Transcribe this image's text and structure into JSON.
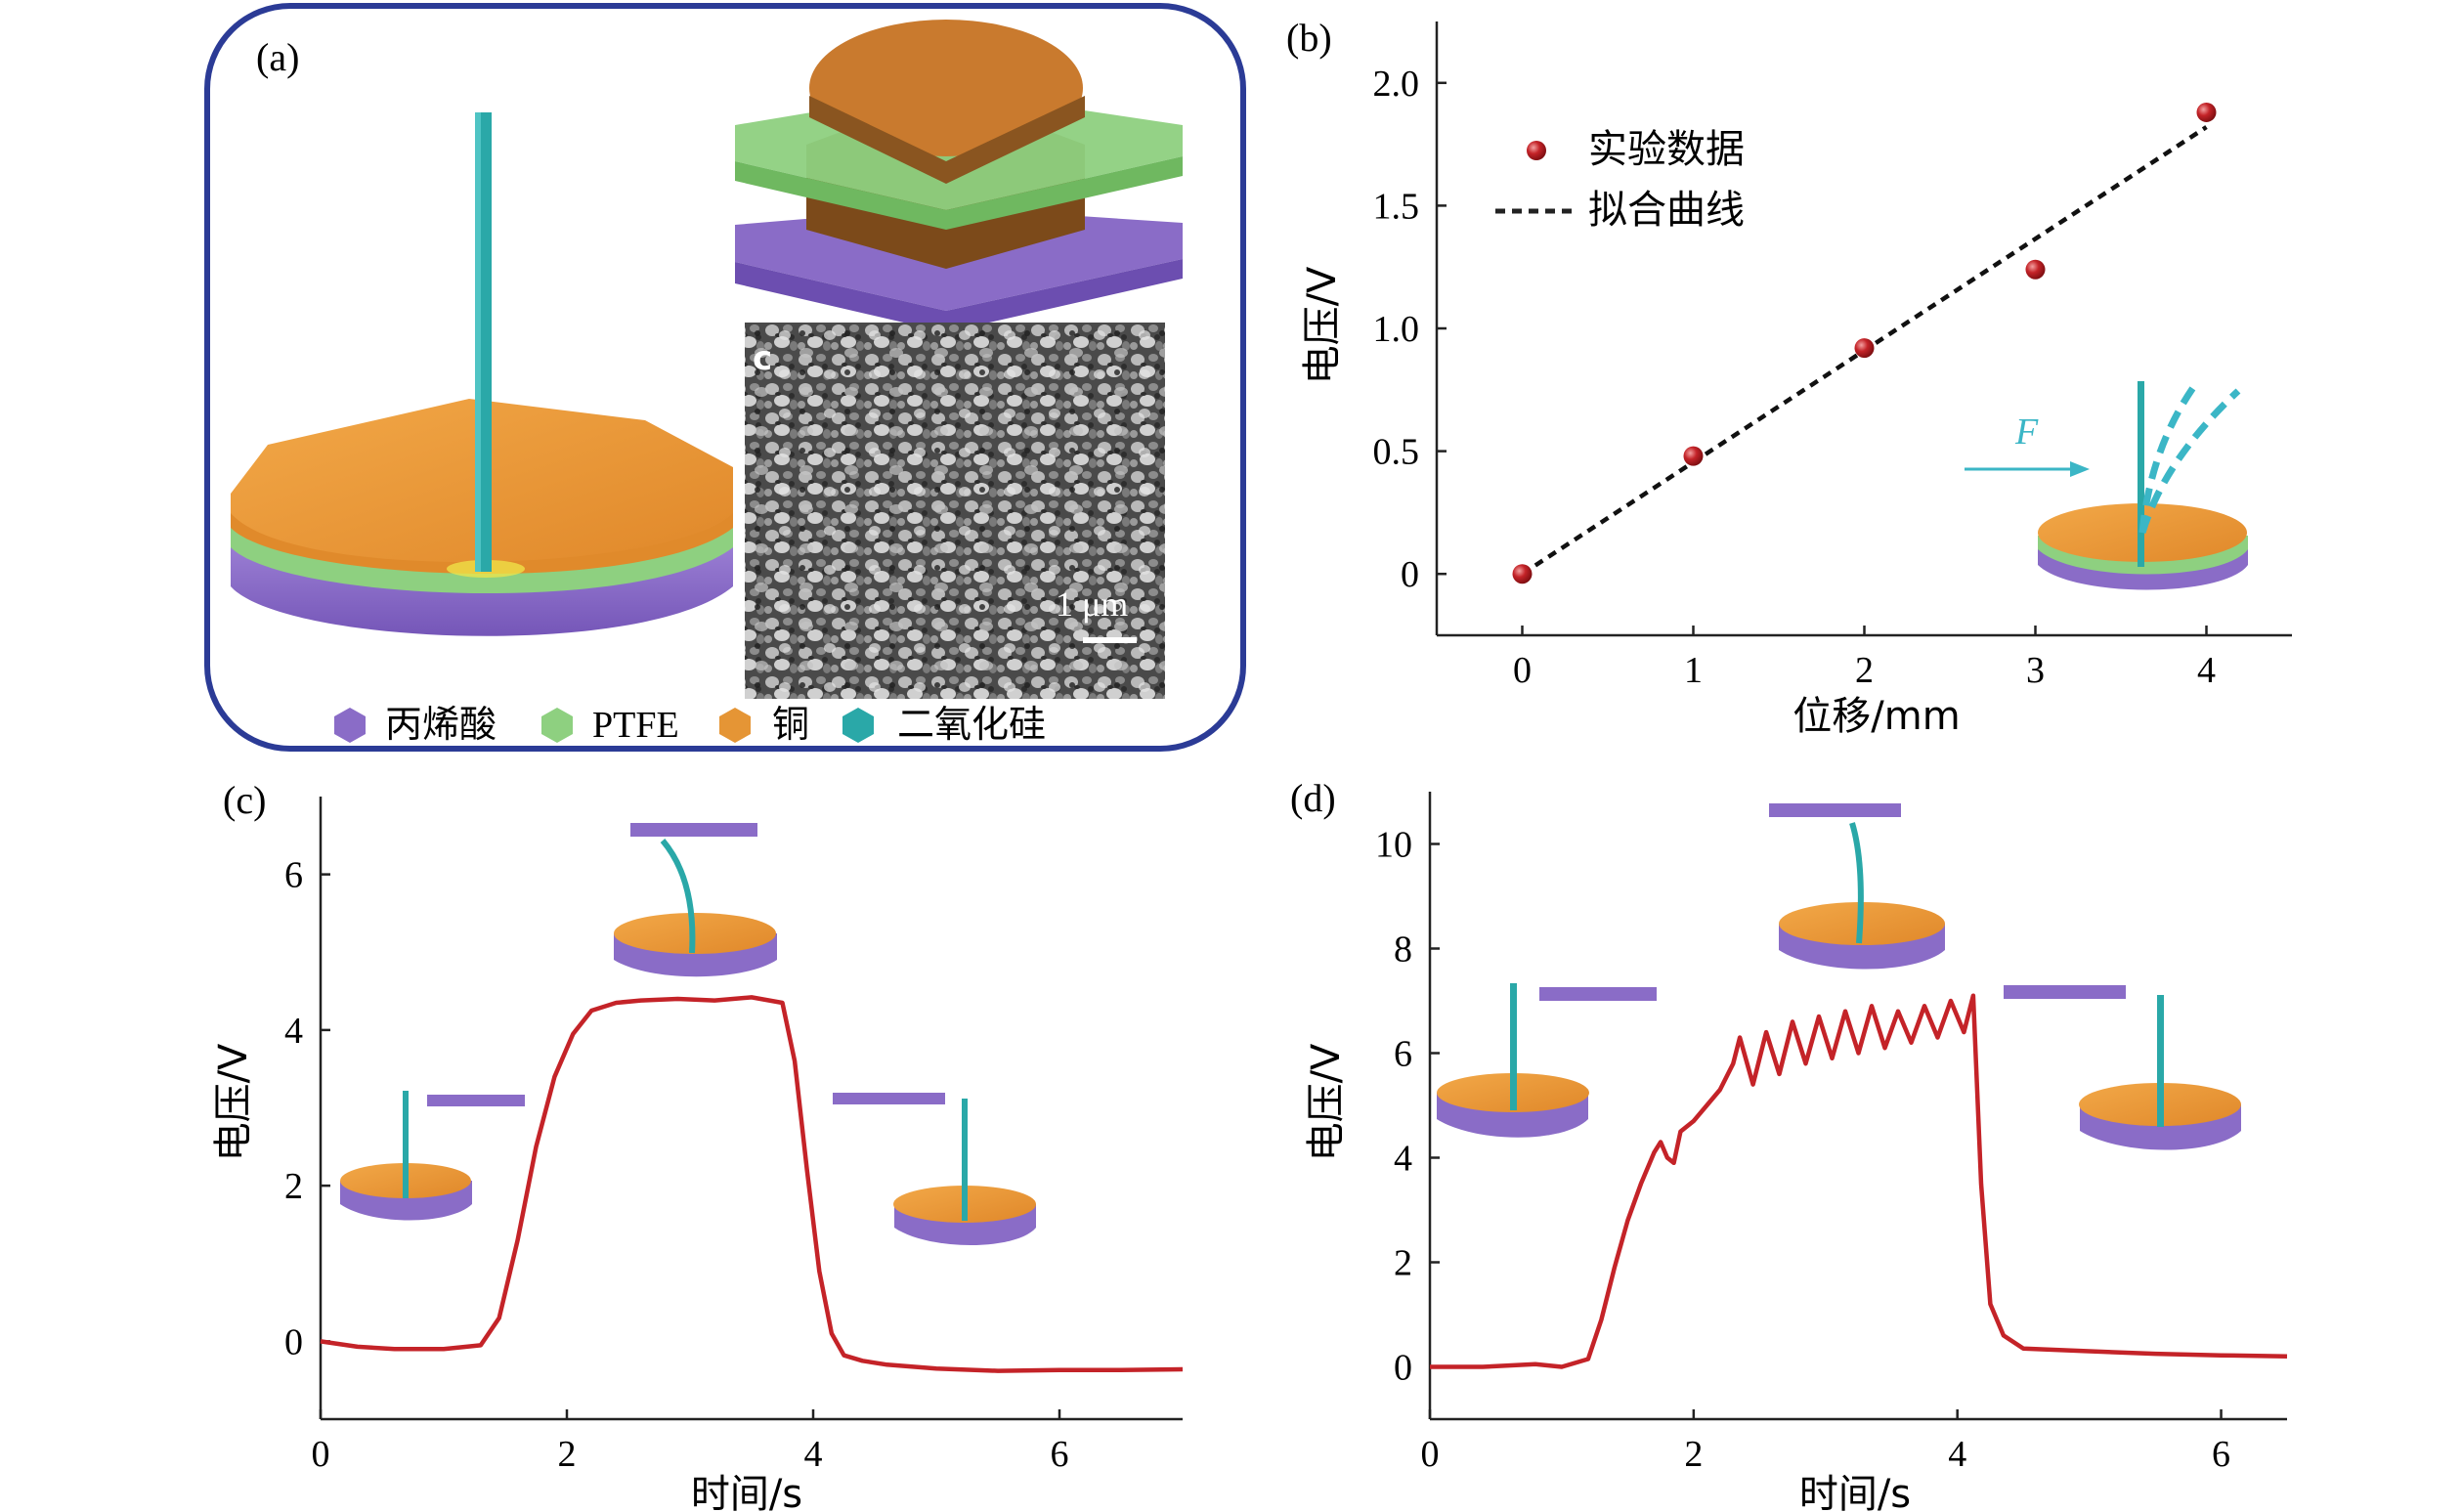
{
  "panel_labels": {
    "a": "(a)",
    "b": "(b)",
    "c": "(c)",
    "d": "(d)"
  },
  "colors": {
    "frame": "#2b3b96",
    "copper": "#e59535",
    "ptfe": "#8ed080",
    "acrylic": "#8a6cc7",
    "silica": "#2aa8a8",
    "data_red": "#c42328",
    "curve_red": "#c42328",
    "force_arrow": "#3bb6c6"
  },
  "panel_a": {
    "sem_label": "c",
    "scale_bar": "1 μm",
    "legend": [
      {
        "label": "丙烯酸",
        "color": "#8a6cc7"
      },
      {
        "label": "PTFE",
        "color": "#8ed080"
      },
      {
        "label": "铜",
        "color": "#e59535"
      },
      {
        "label": "二氧化硅",
        "color": "#2aa8a8"
      }
    ]
  },
  "chart_data": [
    {
      "id": "b",
      "type": "scatter",
      "xlabel": "位移/mm",
      "ylabel": "电压/V",
      "xlim": [
        -0.5,
        4.5
      ],
      "ylim": [
        -0.25,
        2.25
      ],
      "xticks": [
        0,
        1,
        2,
        3,
        4
      ],
      "yticks": [
        0,
        0.5,
        1.0,
        1.5,
        2.0
      ],
      "ytick_labels": [
        "0",
        "0.5",
        "1.0",
        "1.5",
        "2.0"
      ],
      "series": [
        {
          "name": "实验数据",
          "kind": "points",
          "x": [
            0,
            1,
            2,
            3,
            4
          ],
          "y": [
            0.0,
            0.48,
            0.92,
            1.24,
            1.88
          ]
        },
        {
          "name": "拟合曲线",
          "kind": "dashed-line",
          "x": [
            0,
            4
          ],
          "y": [
            0.0,
            1.82
          ]
        }
      ],
      "legend_position": "upper-left",
      "inset_force_label": "F"
    },
    {
      "id": "c",
      "type": "line",
      "xlabel": "时间/s",
      "ylabel": "电压/V",
      "xlim": [
        0,
        7
      ],
      "ylim": [
        -1,
        7
      ],
      "xticks": [
        0,
        2,
        4,
        6
      ],
      "yticks": [
        0,
        2,
        4,
        6
      ],
      "series": [
        {
          "x": [
            0,
            0.3,
            0.6,
            1.0,
            1.3,
            1.45,
            1.6,
            1.75,
            1.9,
            2.05,
            2.2,
            2.4,
            2.6,
            2.9,
            3.2,
            3.5,
            3.75,
            3.85,
            3.95,
            4.05,
            4.15,
            4.25,
            4.4,
            4.6,
            5.0,
            5.5,
            6.0,
            6.5,
            7.0
          ],
          "y": [
            0.0,
            -0.07,
            -0.1,
            -0.1,
            -0.05,
            0.3,
            1.3,
            2.5,
            3.4,
            3.95,
            4.25,
            4.35,
            4.38,
            4.4,
            4.38,
            4.42,
            4.35,
            3.6,
            2.2,
            0.9,
            0.1,
            -0.18,
            -0.25,
            -0.3,
            -0.35,
            -0.38,
            -0.37,
            -0.37,
            -0.36
          ]
        }
      ]
    },
    {
      "id": "d",
      "type": "line",
      "xlabel": "时间/s",
      "ylabel": "电压/V",
      "xlim": [
        0,
        6.5
      ],
      "ylim": [
        -1,
        11
      ],
      "xticks": [
        0,
        2,
        4,
        6
      ],
      "yticks": [
        0,
        2,
        4,
        6,
        8,
        10
      ],
      "series": [
        {
          "x": [
            0,
            0.4,
            0.8,
            1.0,
            1.2,
            1.3,
            1.4,
            1.5,
            1.6,
            1.7,
            1.75,
            1.8,
            1.85,
            1.9,
            2.0,
            2.1,
            2.2,
            2.3,
            2.35,
            2.45,
            2.55,
            2.65,
            2.75,
            2.85,
            2.95,
            3.05,
            3.15,
            3.25,
            3.35,
            3.45,
            3.55,
            3.65,
            3.75,
            3.85,
            3.95,
            4.05,
            4.12,
            4.18,
            4.25,
            4.35,
            4.5,
            5.0,
            5.5,
            6.0,
            6.5
          ],
          "y": [
            0.0,
            0.0,
            0.05,
            0.0,
            0.15,
            0.9,
            1.9,
            2.8,
            3.5,
            4.1,
            4.3,
            4.0,
            3.9,
            4.5,
            4.7,
            5.0,
            5.3,
            5.8,
            6.3,
            5.4,
            6.4,
            5.6,
            6.6,
            5.8,
            6.7,
            5.9,
            6.8,
            6.0,
            6.9,
            6.1,
            6.8,
            6.2,
            6.9,
            6.3,
            7.0,
            6.4,
            7.1,
            3.5,
            1.2,
            0.6,
            0.35,
            0.3,
            0.25,
            0.22,
            0.2
          ]
        }
      ]
    }
  ]
}
